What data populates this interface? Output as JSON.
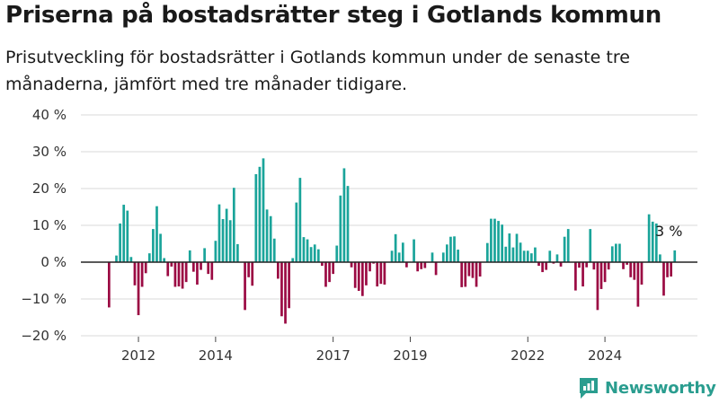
{
  "title": "Priserna på bostadsrätter steg i Gotlands kommun",
  "subtitle": "Prisutveckling för bostadsrätter i Gotlands kommun under de senaste tre månaderna, jämfört med tre månader tidigare.",
  "brand": {
    "name": "Newsworthy",
    "icon": "newsworthy-logo-icon",
    "color": "#2a9d8f"
  },
  "colors": {
    "positive": "#1aa49a",
    "negative": "#9b0a43",
    "grid": "#d9d9d9",
    "axis": "#222222"
  },
  "chart_data": {
    "type": "bar",
    "title": "Priserna på bostadsrätter steg i Gotlands kommun",
    "xlabel": "",
    "ylabel": "",
    "ylim": [
      -20,
      40
    ],
    "yticks": [
      "40 %",
      "30 %",
      "20 %",
      "10 %",
      "0 %",
      "−10 %",
      "−20 %"
    ],
    "ytick_values": [
      40,
      30,
      20,
      10,
      0,
      -10,
      -20
    ],
    "xticks": [
      "2012",
      "2014",
      "2017",
      "2019",
      "2022",
      "2024"
    ],
    "xtick_indices": [
      8,
      29,
      61,
      82,
      114,
      135
    ],
    "grid": true,
    "annotation": "3 %",
    "values": [
      -12.3,
      0,
      1.8,
      10.5,
      15.6,
      14.0,
      1.4,
      -6.3,
      -14.4,
      -6.7,
      -3.0,
      2.4,
      9.0,
      15.2,
      7.7,
      1.1,
      -3.8,
      -1.2,
      -6.7,
      -6.6,
      -7.2,
      -5.4,
      3.2,
      -2.6,
      -6.1,
      -2.1,
      3.8,
      -3.2,
      -4.8,
      5.8,
      15.7,
      11.7,
      14.5,
      11.4,
      20.2,
      4.9,
      0,
      -13.0,
      -4.1,
      -6.4,
      23.9,
      25.9,
      28.2,
      14.3,
      12.5,
      6.4,
      -4.5,
      -14.7,
      -16.7,
      -12.5,
      1.1,
      16.2,
      22.9,
      6.8,
      6.2,
      4.1,
      4.8,
      3.5,
      -1.0,
      -6.7,
      -5.4,
      -3.2,
      4.5,
      18.1,
      25.5,
      20.7,
      -1.4,
      -7.0,
      -7.8,
      -9.2,
      -6.3,
      -2.5,
      -0.4,
      -6.6,
      -5.9,
      -6.1,
      0,
      3.1,
      7.6,
      2.6,
      5.3,
      -1.4,
      0,
      6.2,
      -2.5,
      -1.9,
      -1.6,
      0,
      2.6,
      -3.5,
      0,
      2.6,
      4.8,
      6.9,
      7.0,
      3.4,
      -6.8,
      -6.7,
      -3.8,
      -4.3,
      -6.7,
      -3.9,
      0,
      5.2,
      11.8,
      11.8,
      11.2,
      10.2,
      4.2,
      7.8,
      4.0,
      7.7,
      5.3,
      3.1,
      3.1,
      2.4,
      4.0,
      -1.0,
      -2.7,
      -2.1,
      3.1,
      -0.4,
      2.1,
      -1.2,
      6.9,
      9.0,
      0,
      -7.7,
      -1.5,
      -6.6,
      -1.4,
      9.0,
      -2.0,
      -13.0,
      -7.3,
      -5.4,
      -2.0,
      4.3,
      5.0,
      5.0,
      -1.9,
      -0.7,
      -4.1,
      -4.8,
      -12.1,
      -6.1,
      0,
      13.0,
      11.0,
      10.5,
      2.1,
      -9.1,
      -4.1,
      -3.9,
      3.2
    ]
  }
}
